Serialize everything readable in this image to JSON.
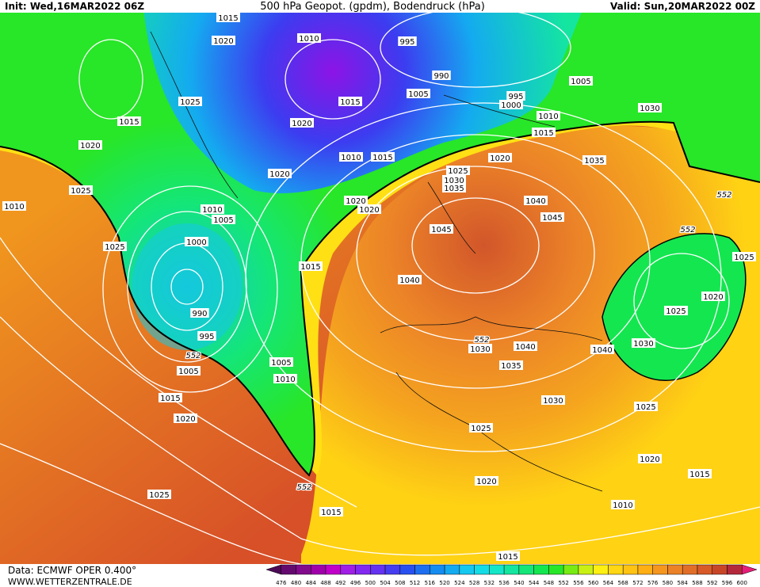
{
  "header": {
    "init": "Init: Wed,16MAR2022 06Z",
    "title": "500 hPa Geopot. (gpdm), Bodendruck (hPa)",
    "valid": "Valid: Sun,20MAR2022 00Z"
  },
  "isobar_labels": [
    1015,
    1020,
    1010,
    995,
    990,
    1005,
    995,
    1000,
    1005,
    1015,
    1025,
    1015,
    1020,
    1010,
    1030,
    1015,
    1020,
    1010,
    1015,
    1020,
    1020,
    1035,
    1025,
    1030,
    1035,
    1025,
    1010,
    1020,
    1020,
    1040,
    1010,
    1005,
    1045,
    1045,
    1000,
    1025,
    1015,
    1040,
    1020,
    990,
    1025,
    995,
    1030,
    1040,
    1040,
    1030,
    1005,
    1005,
    1035,
    1010,
    1015,
    1030,
    1025,
    1020,
    1025,
    1020,
    1015,
    1020,
    1025,
    1010,
    1015,
    1015,
    1025
  ],
  "geopot_labels": [
    552,
    552,
    552,
    552,
    552
  ],
  "footer": {
    "data": "Data: ECMWF OPER 0.400°",
    "site": "WWW.WETTERZENTRALE.DE"
  },
  "colorbar": {
    "labels": [
      476,
      480,
      484,
      488,
      492,
      496,
      500,
      504,
      508,
      512,
      516,
      520,
      524,
      528,
      532,
      536,
      540,
      544,
      548,
      552,
      556,
      560,
      564,
      568,
      572,
      576,
      580,
      584,
      588,
      592,
      596,
      600
    ],
    "colors": [
      "#4b0a55",
      "#640a6e",
      "#820a8c",
      "#a000aa",
      "#c000c8",
      "#a01ee6",
      "#8228f0",
      "#6432f0",
      "#463cf0",
      "#2850f0",
      "#1e6ef0",
      "#148cf0",
      "#14aaf0",
      "#14c8f0",
      "#14dce6",
      "#14e6c8",
      "#14e6a0",
      "#14e678",
      "#14e650",
      "#28e628",
      "#78eb14",
      "#c8f014",
      "#fff014",
      "#ffd714",
      "#ffc314",
      "#ffaf14",
      "#f5961e",
      "#eb8228",
      "#e16e28",
      "#d75a28",
      "#c84628",
      "#b4283c",
      "#e61e78"
    ]
  }
}
